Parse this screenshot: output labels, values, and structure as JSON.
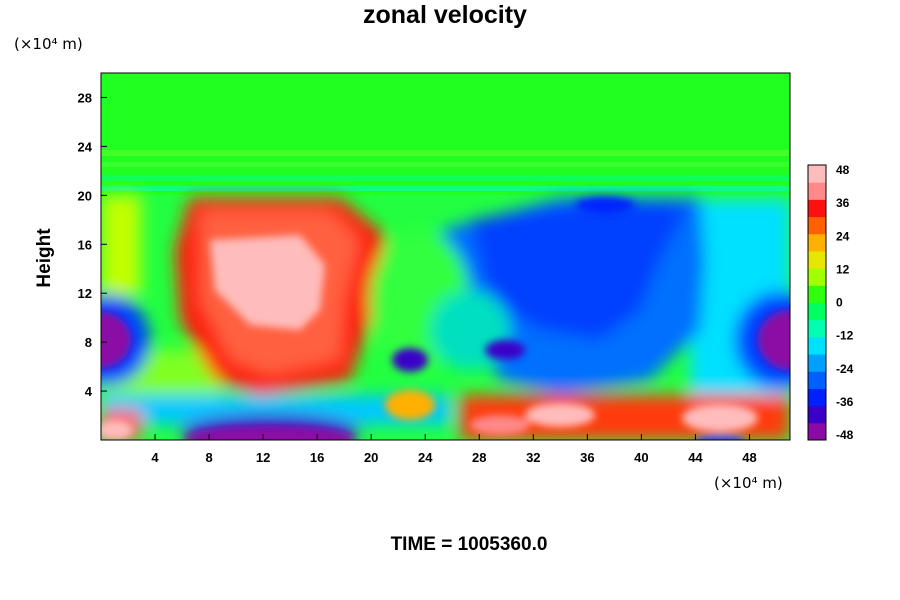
{
  "chart_data": {
    "type": "heatmap",
    "title": "zonal velocity",
    "ylabel": "Height",
    "xlabel": "",
    "x_unit_label": "(×10⁴ m)",
    "y_unit_label": "(×10⁴ m)",
    "xlim": [
      0,
      51
    ],
    "ylim": [
      0,
      30
    ],
    "x_ticks": [
      4,
      8,
      12,
      16,
      20,
      24,
      28,
      32,
      36,
      40,
      44,
      48
    ],
    "y_ticks": [
      4,
      8,
      12,
      16,
      20,
      24,
      28
    ],
    "colorbar": {
      "ticks": [
        48,
        36,
        24,
        12,
        0,
        -12,
        -24,
        -36,
        -48
      ],
      "range": [
        -48,
        48
      ],
      "colors": [
        "#8b0aa5",
        "#3b00c8",
        "#0020ff",
        "#0060ff",
        "#00a0ff",
        "#00e0ff",
        "#00ffb0",
        "#00ff60",
        "#30ff10",
        "#a0ff00",
        "#e6e600",
        "#ffb000",
        "#ff6000",
        "#ff1010",
        "#ff8888",
        "#ffbcbc"
      ]
    },
    "regions": [
      {
        "desc": "upper layer",
        "x": [
          0,
          51
        ],
        "y": [
          20.5,
          30
        ],
        "value": 0
      },
      {
        "desc": "left jet",
        "x": [
          7,
          20
        ],
        "y": [
          8,
          20
        ],
        "value": 36
      },
      {
        "desc": "jet core",
        "x": [
          9,
          16
        ],
        "y": [
          11,
          17
        ],
        "value": 48
      },
      {
        "desc": "right easterly",
        "x": [
          24,
          48
        ],
        "y": [
          6,
          20
        ],
        "value": -30
      },
      {
        "desc": "left edge low",
        "x": [
          0,
          4
        ],
        "y": [
          7,
          11
        ],
        "value": -48
      },
      {
        "desc": "right edge low",
        "x": [
          48,
          51
        ],
        "y": [
          7,
          11
        ],
        "value": -48
      },
      {
        "desc": "bottom low",
        "x": [
          7,
          18
        ],
        "y": [
          0,
          1.5
        ],
        "value": -48
      },
      {
        "desc": "bottom high",
        "x": [
          28,
          51
        ],
        "y": [
          0,
          3
        ],
        "value": 40
      }
    ]
  },
  "footer": {
    "time_label": "TIME = 1005360.0"
  },
  "colors": {
    "frame": "#000000",
    "background": "#ffffff"
  }
}
